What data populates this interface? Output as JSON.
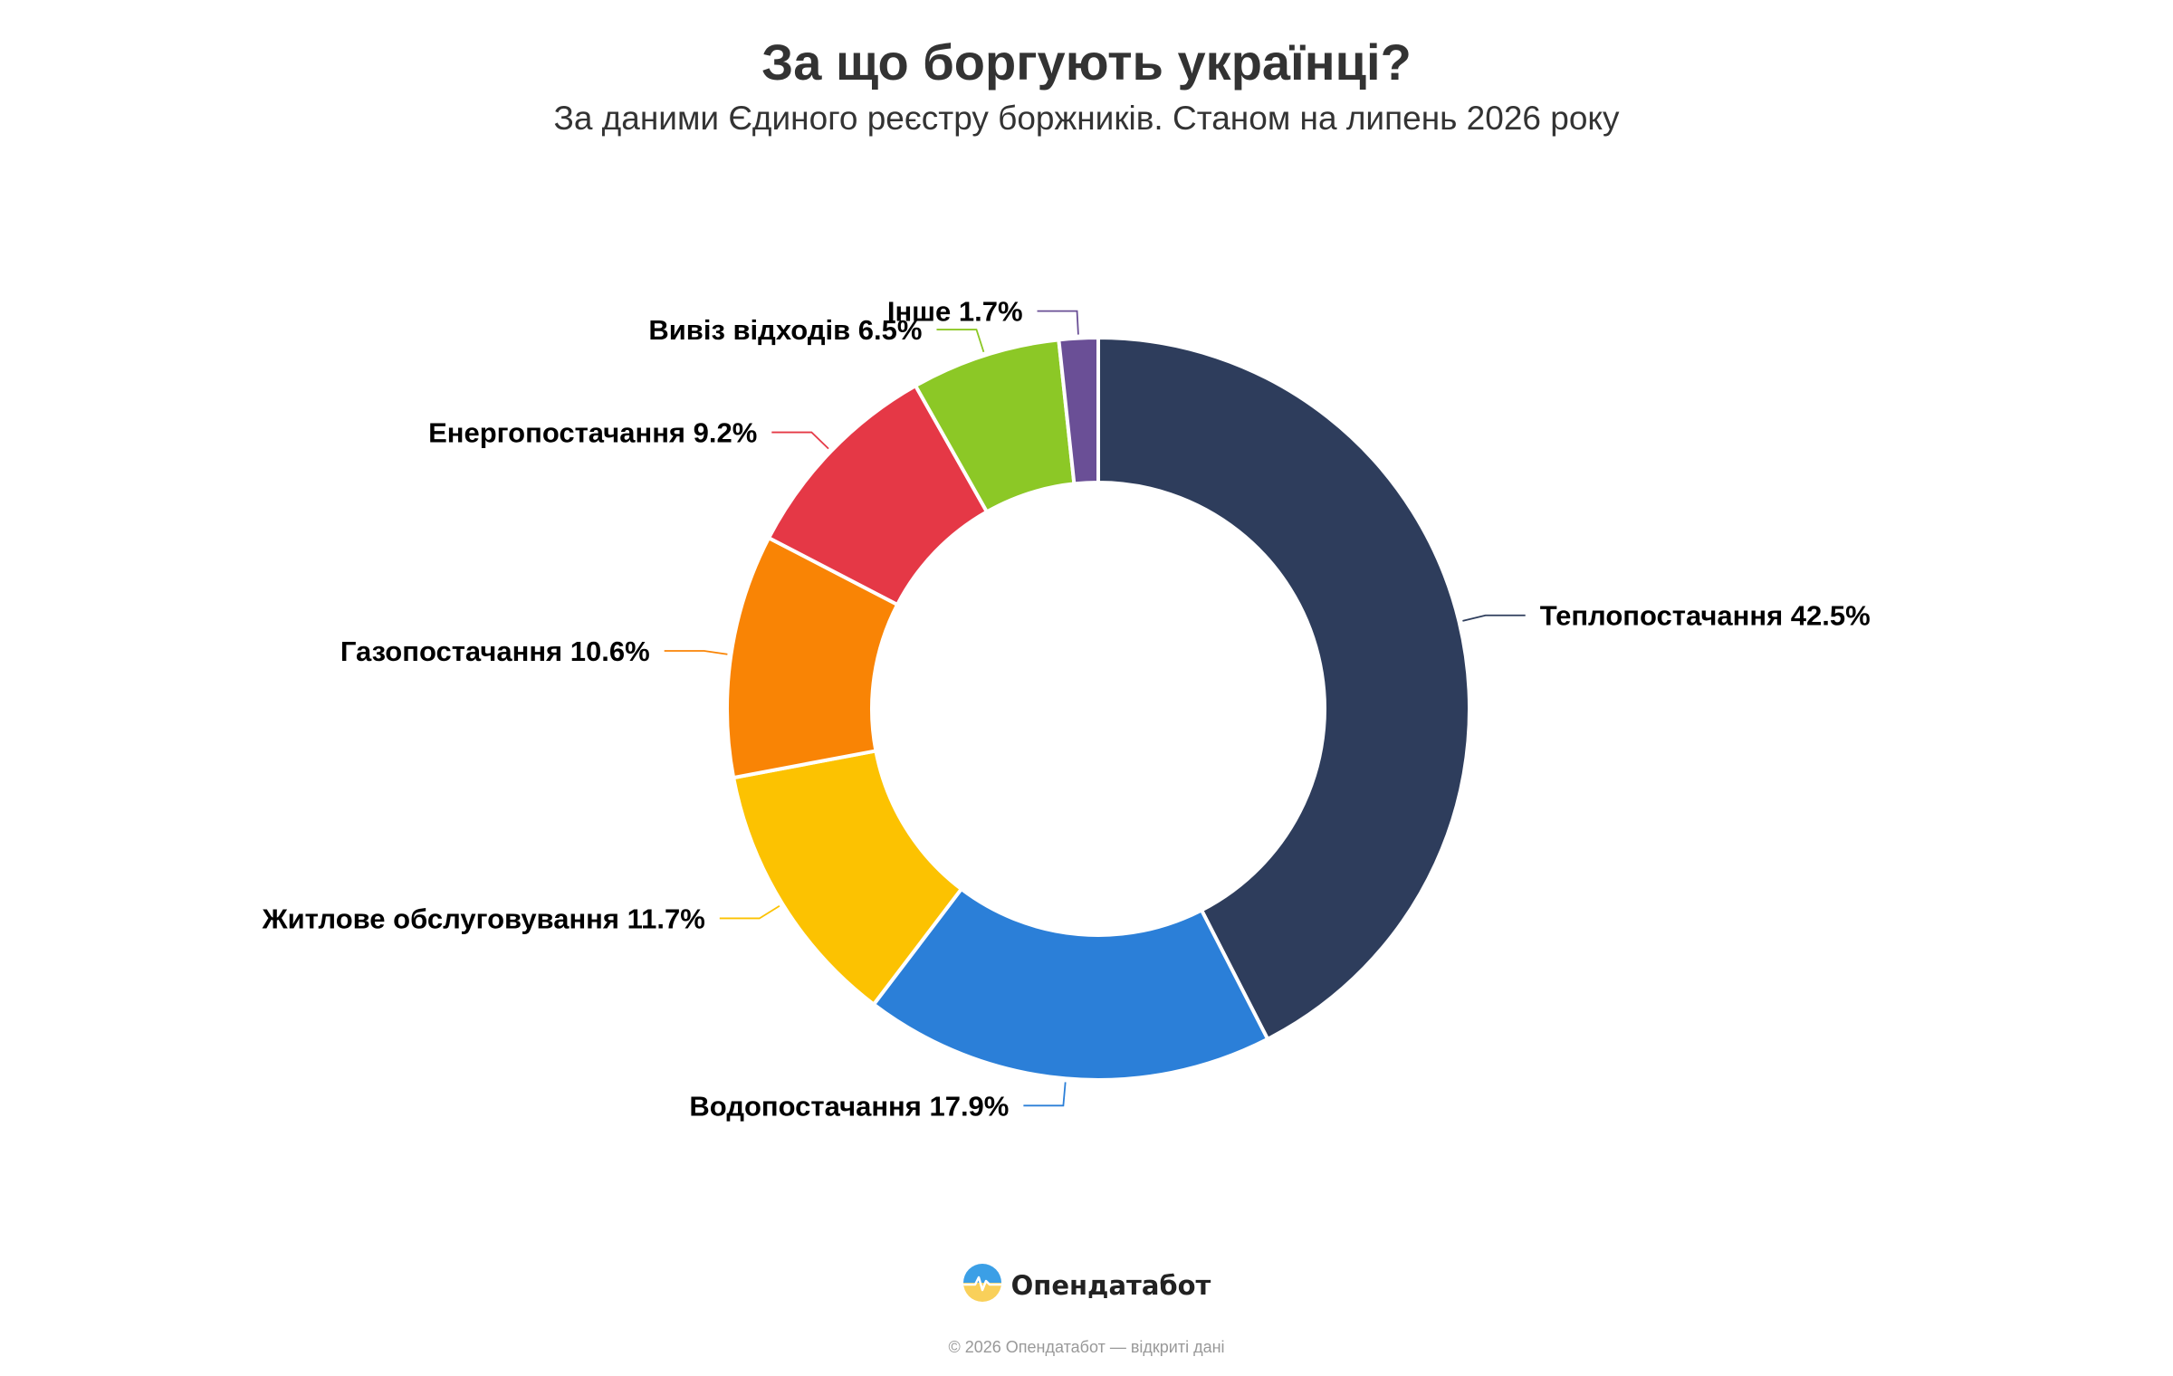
{
  "header": {
    "title": "За що боргують українці?",
    "subtitle": "За даними Єдиного реєстру боржників. Станом на липень 2026 року"
  },
  "chart_data": {
    "type": "pie",
    "variant": "donut",
    "title": "За що боргують українці?",
    "subtitle": "За даними Єдиного реєстру боржників. Станом на липень 2026 року",
    "unit": "%",
    "legend": "none",
    "slices": [
      {
        "label": "Теплопостачання",
        "value": 42.5,
        "display": "Теплопостачання 42.5%",
        "color": "#2e3d5c"
      },
      {
        "label": "Водопостачання",
        "value": 17.9,
        "display": "Водопостачання 17.9%",
        "color": "#2b7fd8"
      },
      {
        "label": "Житлове обслуговування",
        "value": 11.7,
        "display": "Житлове обслуговування 11.7%",
        "color": "#fcc201"
      },
      {
        "label": "Газопостачання",
        "value": 10.6,
        "display": "Газопостачання 10.6%",
        "color": "#f98405"
      },
      {
        "label": "Енергопостачання",
        "value": 9.2,
        "display": "Енергопостачання 9.2%",
        "color": "#e53846"
      },
      {
        "label": "Вивіз відходів",
        "value": 6.5,
        "display": "Вивіз відходів 6.5%",
        "color": "#8cc826"
      },
      {
        "label": "Інше",
        "value": 1.7,
        "display": "Інше 1.7%",
        "color": "#6a4f96"
      }
    ]
  },
  "brand": {
    "name": "Опендатабот",
    "logo_icon": "opendatabot-logo-icon"
  },
  "footer": {
    "note": "© 2026 Опендатабот — відкриті дані"
  }
}
